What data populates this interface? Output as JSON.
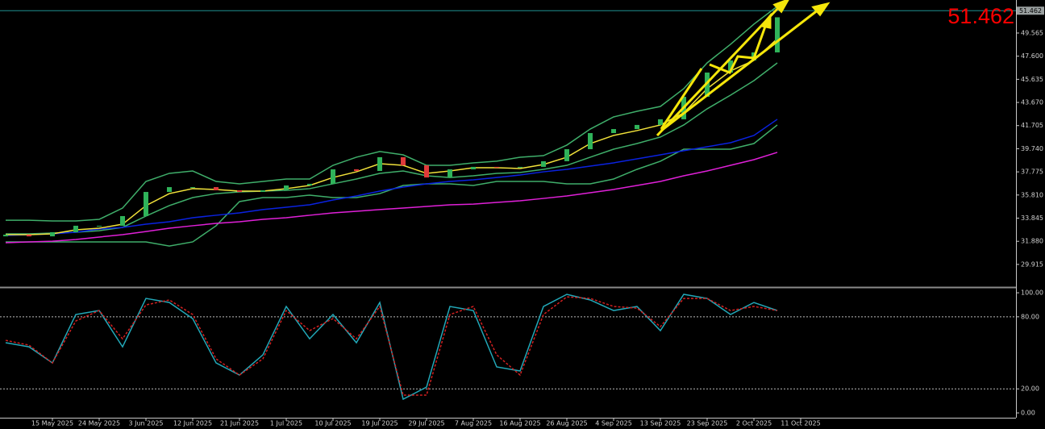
{
  "chart_data": [
    {
      "type": "candlestick",
      "categories": [
        null,
        null,
        "15 May 2025",
        null,
        "24 May 2025",
        null,
        "3 Jun 2025",
        null,
        "12 Jun 2025",
        null,
        "21 Jun 2025",
        null,
        "1 Jul 2025",
        null,
        "10 Jul 2025",
        null,
        "19 Jul 2025",
        null,
        "29 Jul 2025",
        null,
        "7 Aug 2025",
        null,
        "16 Aug 2025",
        null,
        "26 Aug 2025",
        null,
        "4 Sep 2025",
        null,
        "13 Sep 2025",
        null,
        "23 Sep 2025",
        null,
        "2 Oct 2025",
        null,
        "11 Oct 2025"
      ],
      "open": [
        32.3,
        32.44,
        32.3,
        32.65,
        33.2,
        33.2,
        34.02,
        36.07,
        36.48,
        36.48,
        36.21,
        36.07,
        36.21,
        36.62,
        36.76,
        37.99,
        37.85,
        39.02,
        38.33,
        37.3,
        37.99,
        38.2,
        38.13,
        38.2,
        38.68,
        39.7,
        41.07,
        41.41,
        41.76,
        42.24,
        44.15,
        46.21,
        47.24,
        47.92,
        null
      ],
      "close": [
        32.44,
        32.3,
        32.65,
        33.2,
        33.2,
        34.02,
        36.07,
        36.48,
        36.48,
        36.21,
        36.07,
        36.21,
        36.62,
        36.76,
        37.99,
        37.85,
        39.02,
        38.33,
        37.3,
        37.99,
        38.2,
        38.13,
        38.2,
        38.68,
        39.7,
        41.07,
        41.41,
        41.76,
        42.24,
        44.15,
        46.21,
        47.24,
        47.92,
        50.9,
        null
      ],
      "up_color": "#2fb35a",
      "down_color": "#e03a3a",
      "series": [
        {
          "color": "#3fae6a",
          "values": [
            33.67,
            33.67,
            33.61,
            33.61,
            33.74,
            34.7,
            36.96,
            37.65,
            37.85,
            36.96,
            36.76,
            36.96,
            37.17,
            37.17,
            38.33,
            39.02,
            39.5,
            39.22,
            38.33,
            38.33,
            38.54,
            38.68,
            39.02,
            39.15,
            40.05,
            41.41,
            42.44,
            42.92,
            43.33,
            44.84,
            47.03,
            48.61,
            50.32,
            51.83,
            null
          ]
        },
        {
          "color": "#3fae6a",
          "values": [
            32.51,
            32.51,
            32.58,
            32.65,
            32.78,
            33.06,
            34.02,
            34.91,
            35.59,
            35.93,
            36.07,
            36.14,
            36.21,
            36.35,
            36.76,
            37.17,
            37.65,
            37.85,
            37.44,
            37.3,
            37.44,
            37.65,
            37.72,
            37.99,
            38.33,
            39.02,
            39.7,
            40.18,
            40.73,
            41.76,
            43.13,
            44.29,
            45.52,
            47.03,
            null
          ]
        },
        {
          "color": "#3fae6a",
          "values": [
            31.83,
            31.83,
            31.83,
            31.83,
            31.83,
            31.83,
            31.83,
            31.48,
            31.83,
            33.2,
            35.25,
            35.59,
            35.59,
            35.8,
            35.59,
            35.59,
            35.93,
            36.62,
            36.76,
            36.76,
            36.62,
            36.96,
            36.96,
            36.96,
            36.76,
            36.76,
            37.17,
            37.99,
            38.68,
            39.7,
            39.7,
            39.7,
            40.18,
            41.76,
            null
          ]
        },
        {
          "color": "#0a22e0",
          "values": [
            32.37,
            32.44,
            32.51,
            32.65,
            32.92,
            33.06,
            33.33,
            33.54,
            33.88,
            34.09,
            34.29,
            34.57,
            34.77,
            34.98,
            35.39,
            35.73,
            36.14,
            36.48,
            36.76,
            36.96,
            37.1,
            37.3,
            37.51,
            37.78,
            37.99,
            38.26,
            38.54,
            38.88,
            39.22,
            39.57,
            39.91,
            40.25,
            40.87,
            42.24,
            null
          ]
        },
        {
          "color": "#e020d8",
          "values": [
            31.76,
            31.83,
            31.89,
            32.03,
            32.24,
            32.44,
            32.71,
            32.99,
            33.2,
            33.4,
            33.54,
            33.74,
            33.88,
            34.09,
            34.29,
            34.43,
            34.57,
            34.7,
            34.84,
            34.98,
            35.04,
            35.18,
            35.32,
            35.52,
            35.73,
            36.0,
            36.28,
            36.62,
            36.96,
            37.44,
            37.85,
            38.33,
            38.81,
            39.43,
            null
          ]
        },
        {
          "color": "#f2e23a",
          "values": [
            32.44,
            32.44,
            32.51,
            32.85,
            32.99,
            33.33,
            34.91,
            35.93,
            36.35,
            36.28,
            36.14,
            36.14,
            36.35,
            36.62,
            37.3,
            37.78,
            38.47,
            38.33,
            37.65,
            37.85,
            38.13,
            38.13,
            38.06,
            38.4,
            39.02,
            40.18,
            40.87,
            41.28,
            41.76,
            42.79,
            44.84,
            46.35,
            47.24,
            49.09,
            null
          ]
        }
      ],
      "ylim": [
        28.06,
        52.37
      ],
      "yticks": [
        49.565,
        {
          "value": 47.6,
          "label": "47.600"
        },
        45.635,
        {
          "value": 43.67,
          "label": "43.670"
        },
        41.705,
        {
          "value": 39.74,
          "label": "39.740"
        },
        37.775,
        {
          "value": 35.81,
          "label": "35.810"
        },
        33.845,
        {
          "value": 31.88,
          "label": "31.880"
        },
        29.915
      ],
      "last_price": 51.462,
      "last_price_color": "#1f8f8f"
    },
    {
      "type": "line",
      "series": [
        {
          "color": "#22a8b8",
          "dash": false,
          "values": [
            58.4,
            55.0,
            41.6,
            81.9,
            85.2,
            55.0,
            95.3,
            91.9,
            78.5,
            41.6,
            31.5,
            48.3,
            88.6,
            61.7,
            81.9,
            58.4,
            91.9,
            11.4,
            21.5,
            88.6,
            85.2,
            38.3,
            34.9,
            88.6,
            98.7,
            94.0,
            85.2,
            88.6,
            68.5,
            98.7,
            95.3,
            81.9,
            91.9,
            85.2,
            null
          ]
        },
        {
          "color": "#d02020",
          "dash": true,
          "values": [
            60.4,
            56.4,
            41.6,
            76.5,
            85.2,
            61.7,
            89.9,
            94.0,
            81.9,
            45.0,
            31.5,
            45.0,
            85.2,
            68.5,
            78.5,
            61.7,
            88.6,
            14.8,
            14.8,
            81.9,
            88.6,
            48.3,
            31.5,
            81.9,
            96.6,
            95.3,
            88.6,
            87.2,
            71.8,
            95.3,
            95.3,
            85.2,
            88.6,
            85.2,
            null
          ]
        }
      ],
      "ylim": [
        -4,
        103.4
      ],
      "yticks": [
        {
          "value": 100,
          "label": "100.00"
        },
        {
          "value": 80,
          "label": "80.00"
        },
        {
          "value": 20,
          "label": "20.00"
        },
        {
          "value": 0,
          "label": "0.00"
        }
      ],
      "levels": [
        80,
        20
      ]
    }
  ]
}
